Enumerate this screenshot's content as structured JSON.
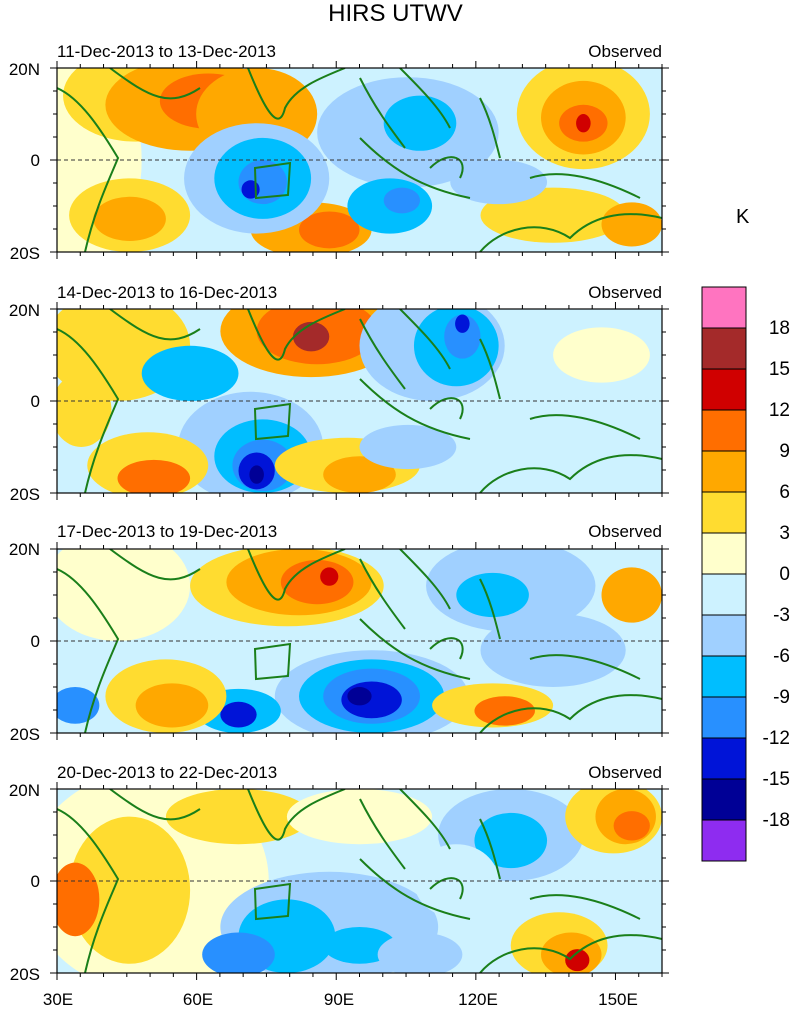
{
  "title": "HIRS UTWV",
  "panels": [
    {
      "date": "11-Dec-2013 to 13-Dec-2013",
      "label": "Observed"
    },
    {
      "date": "14-Dec-2013 to 16-Dec-2013",
      "label": "Observed"
    },
    {
      "date": "17-Dec-2013 to 19-Dec-2013",
      "label": "Observed"
    },
    {
      "date": "20-Dec-2013 to 22-Dec-2013",
      "label": "Observed"
    }
  ],
  "lat_labels": [
    "20N",
    "0",
    "20S"
  ],
  "lon_labels": [
    "30E",
    "60E",
    "90E",
    "120E",
    "150E"
  ],
  "colorbar": {
    "unit": "K",
    "labels": [
      "18",
      "15",
      "12",
      "9",
      "6",
      "3",
      "0",
      "-3",
      "-6",
      "-9",
      "-12",
      "-15",
      "-18"
    ],
    "colors": [
      "#ff74c0",
      "#a42a2a",
      "#d00000",
      "#ff6e00",
      "#ffa800",
      "#ffdc30",
      "#ffffcc",
      "#cdf2ff",
      "#a0d0ff",
      "#00beff",
      "#2890ff",
      "#0014d8",
      "#000096",
      "#8e2cf0"
    ]
  }
}
